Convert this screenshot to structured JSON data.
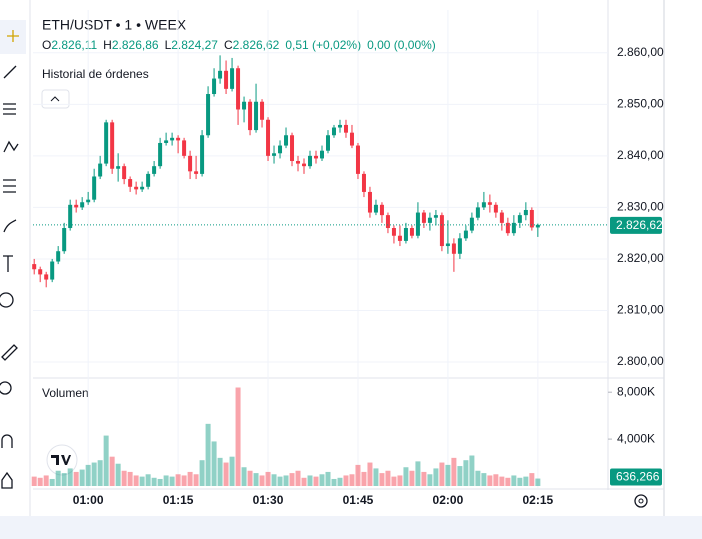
{
  "header": {
    "symbol": "ETH/USDT • 1 • WEEX",
    "ohlc": [
      {
        "key": "O",
        "value": "2.826,11"
      },
      {
        "key": "H",
        "value": "2.826,86"
      },
      {
        "key": "L",
        "value": "2.824,27"
      },
      {
        "key": "C",
        "value": "2.826,62"
      }
    ],
    "change": "0,51 (+0,02%)",
    "change2": "0,00 (0,00%)",
    "orders": "Historial de órdenes"
  },
  "chart_data": {
    "type": "candlestick",
    "up_color": "#089981",
    "down_color": "#f23645",
    "x": [
      51,
      52,
      53,
      54,
      55,
      56,
      57,
      58,
      59,
      60,
      61,
      62,
      63,
      64,
      65,
      66,
      67,
      68,
      69,
      70,
      71,
      72,
      73,
      74,
      75,
      76,
      77,
      78,
      79,
      80,
      81,
      82,
      83,
      84,
      85,
      86,
      87,
      88,
      89,
      90,
      91,
      92,
      93,
      94,
      95,
      96,
      97,
      98,
      99,
      100,
      101,
      102,
      103,
      104,
      105,
      106,
      107,
      108,
      109,
      110,
      111,
      112,
      113,
      114,
      115,
      116,
      117,
      118,
      119,
      120,
      121,
      122,
      123,
      124,
      125,
      126,
      127,
      128,
      129,
      130,
      131,
      132,
      133,
      134,
      135
    ],
    "open": [
      2819.0,
      2818.0,
      2817.0,
      2816.0,
      2819.5,
      2821.5,
      2826.0,
      2830.5,
      2830.0,
      2831.0,
      2831.5,
      2836.0,
      2838.5,
      2846.5,
      2837.5,
      2838.0,
      2835.5,
      2834.0,
      2833.5,
      2834.0,
      2836.5,
      2838.0,
      2842.5,
      2843.0,
      2843.5,
      2843.0,
      2840.0,
      2837.0,
      2836.5,
      2844.0,
      2852.0,
      2855.0,
      2856.5,
      2853.0,
      2857.0,
      2849.0,
      2850.5,
      2845.0,
      2850.5,
      2847.0,
      2840.0,
      2840.5,
      2842.0,
      2844.0,
      2839.0,
      2838.5,
      2838.0,
      2840.0,
      2839.5,
      2841.0,
      2844.0,
      2845.5,
      2846.0,
      2844.5,
      2842.0,
      2836.5,
      2833.0,
      2829.0,
      2830.5,
      2828.5,
      2826.0,
      2824.5,
      2823.5,
      2826.0,
      2824.5,
      2829.0,
      2827.0,
      2828.0,
      2828.5,
      2822.5,
      2823.0,
      2821.0,
      2824.0,
      2825.5,
      2828.0,
      2830.0,
      2831.0,
      2830.5,
      2829.0,
      2827.0,
      2825.0,
      2827.0,
      2828.5,
      2829.5,
      2826.11
    ],
    "high": [
      2820.0,
      2818.5,
      2817.5,
      2820.0,
      2822.5,
      2827.0,
      2831.5,
      2831.5,
      2832.0,
      2833.0,
      2837.5,
      2840.0,
      2847.0,
      2847.0,
      2840.5,
      2838.5,
      2836.0,
      2835.0,
      2835.0,
      2837.0,
      2839.0,
      2843.5,
      2844.5,
      2844.5,
      2844.0,
      2843.5,
      2841.0,
      2840.0,
      2845.0,
      2853.5,
      2857.0,
      2859.5,
      2858.5,
      2859.0,
      2857.5,
      2851.5,
      2851.0,
      2854.0,
      2851.0,
      2847.5,
      2842.0,
      2843.0,
      2845.5,
      2844.5,
      2840.0,
      2839.5,
      2841.0,
      2841.0,
      2842.0,
      2845.0,
      2846.0,
      2847.0,
      2847.0,
      2846.0,
      2842.5,
      2837.0,
      2834.0,
      2831.5,
      2831.0,
      2829.0,
      2826.5,
      2826.5,
      2827.0,
      2826.5,
      2831.0,
      2829.5,
      2829.0,
      2829.5,
      2829.0,
      2827.5,
      2824.0,
      2825.0,
      2826.5,
      2829.0,
      2831.0,
      2833.0,
      2832.5,
      2831.0,
      2829.5,
      2828.0,
      2828.5,
      2829.0,
      2831.0,
      2830.0,
      2826.86
    ],
    "low": [
      2817.0,
      2815.5,
      2814.5,
      2815.5,
      2819.0,
      2821.0,
      2825.5,
      2829.0,
      2829.5,
      2830.5,
      2831.0,
      2835.5,
      2838.0,
      2836.5,
      2835.0,
      2834.5,
      2833.0,
      2832.5,
      2833.0,
      2833.5,
      2836.0,
      2837.5,
      2842.0,
      2842.0,
      2840.5,
      2839.5,
      2835.5,
      2835.5,
      2836.0,
      2843.5,
      2851.5,
      2854.0,
      2852.0,
      2852.5,
      2846.0,
      2846.5,
      2844.0,
      2844.5,
      2845.5,
      2839.0,
      2838.5,
      2839.5,
      2841.5,
      2838.0,
      2837.0,
      2836.5,
      2837.5,
      2838.5,
      2839.0,
      2840.5,
      2843.5,
      2844.5,
      2843.5,
      2841.5,
      2835.5,
      2832.0,
      2828.0,
      2828.5,
      2827.0,
      2825.0,
      2823.0,
      2822.5,
      2823.0,
      2824.0,
      2824.0,
      2826.0,
      2825.5,
      2826.5,
      2821.5,
      2821.0,
      2817.5,
      2820.0,
      2823.5,
      2825.0,
      2827.5,
      2829.5,
      2829.0,
      2828.0,
      2825.5,
      2824.5,
      2824.5,
      2826.0,
      2827.5,
      2825.5,
      2824.27
    ],
    "close": [
      2818.0,
      2817.0,
      2816.0,
      2819.5,
      2821.5,
      2826.0,
      2830.5,
      2830.0,
      2831.0,
      2831.5,
      2836.0,
      2838.5,
      2846.5,
      2837.5,
      2838.0,
      2835.5,
      2834.0,
      2833.5,
      2834.0,
      2836.5,
      2838.0,
      2842.5,
      2843.0,
      2843.5,
      2843.0,
      2840.0,
      2837.0,
      2836.5,
      2844.0,
      2852.0,
      2855.0,
      2856.5,
      2853.0,
      2857.0,
      2849.0,
      2850.5,
      2845.0,
      2850.5,
      2847.0,
      2840.0,
      2840.5,
      2842.0,
      2844.0,
      2839.0,
      2838.5,
      2838.0,
      2840.0,
      2839.5,
      2841.0,
      2844.0,
      2845.5,
      2846.0,
      2844.5,
      2842.0,
      2836.5,
      2833.0,
      2829.0,
      2830.5,
      2828.5,
      2826.0,
      2824.5,
      2823.5,
      2826.0,
      2824.5,
      2829.0,
      2827.0,
      2828.0,
      2828.5,
      2822.5,
      2823.0,
      2821.0,
      2824.0,
      2825.5,
      2828.0,
      2830.0,
      2831.0,
      2830.5,
      2829.0,
      2827.0,
      2825.0,
      2827.0,
      2828.5,
      2829.5,
      2826.11,
      2826.62
    ],
    "xlim": [
      50.8,
      146.7
    ],
    "xticks": [
      {
        "value": 60,
        "label": "01:00"
      },
      {
        "value": 75,
        "label": "01:15"
      },
      {
        "value": 90,
        "label": "01:30"
      },
      {
        "value": 105,
        "label": "01:45"
      },
      {
        "value": 120,
        "label": "02:00"
      },
      {
        "value": 135,
        "label": "02:15"
      }
    ],
    "ylim": [
      2796.9,
      2868.3
    ],
    "yticks": [
      {
        "value": 2800,
        "label": "2.800,00"
      },
      {
        "value": 2810,
        "label": "2.810,00"
      },
      {
        "value": 2820,
        "label": "2.820,00"
      },
      {
        "value": 2830,
        "label": "2.830,00"
      },
      {
        "value": 2840,
        "label": "2.840,00"
      },
      {
        "value": 2850,
        "label": "2.850,00"
      },
      {
        "value": 2860,
        "label": "2.860,00"
      }
    ],
    "price_label": {
      "value": 2826.62,
      "label": "2.826,62"
    },
    "grid": true,
    "volume": {
      "title": "Volumen",
      "values": [
        800,
        700,
        900,
        600,
        1300,
        1100,
        1500,
        1200,
        1400,
        1800,
        2000,
        2200,
        4300,
        2500,
        1900,
        1300,
        1200,
        900,
        800,
        1000,
        700,
        600,
        900,
        800,
        1000,
        900,
        1200,
        1000,
        2200,
        5300,
        3800,
        2400,
        2000,
        2500,
        8400,
        1600,
        1300,
        1100,
        900,
        1200,
        1000,
        800,
        900,
        1100,
        1300,
        700,
        900,
        800,
        1000,
        1200,
        600,
        700,
        900,
        1000,
        1800,
        1200,
        2000,
        1500,
        1100,
        1300,
        800,
        900,
        1600,
        1300,
        2100,
        1200,
        1000,
        1500,
        2000,
        1800,
        2400,
        1700,
        2200,
        2600,
        1300,
        1100,
        900,
        1000,
        800,
        700,
        900,
        700,
        800,
        1100,
        636.266
      ],
      "ylim": [
        0,
        9040
      ],
      "yticks": [
        {
          "value": 4000,
          "label": "4,000K"
        },
        {
          "value": 8000,
          "label": "8,000K"
        }
      ],
      "last_label": {
        "value": 636.266,
        "label": "636,266"
      }
    }
  }
}
